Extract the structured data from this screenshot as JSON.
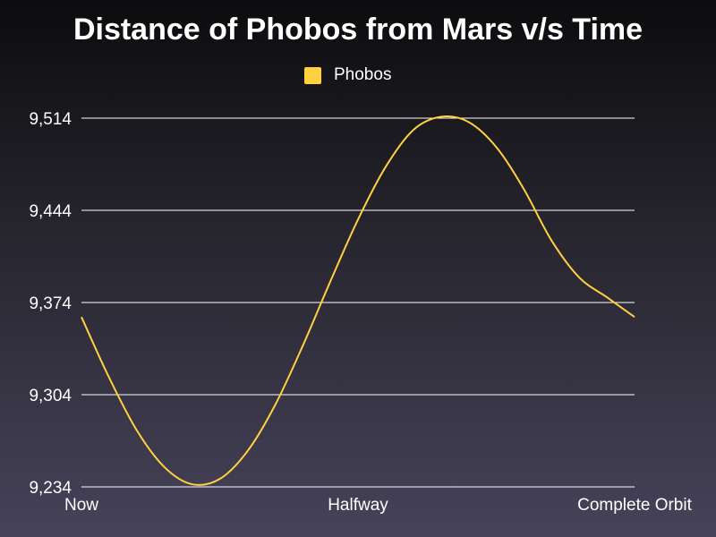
{
  "chart_data": {
    "type": "line",
    "title": "Distance of Phobos from Mars v/s Time",
    "xlabel": "",
    "ylabel": "",
    "x_tick_labels": [
      "Now",
      "Halfway",
      "Complete Orbit"
    ],
    "y_tick_labels": [
      "9,514",
      "9,444",
      "9,374",
      "9,304",
      "9,234"
    ],
    "ylim": [
      9234,
      9514
    ],
    "grid": true,
    "legend_position": "top-center",
    "series": [
      {
        "name": "Phobos",
        "color": "#ffd040",
        "x": [
          0,
          0.05,
          0.1,
          0.15,
          0.2,
          0.25,
          0.3,
          0.35,
          0.4,
          0.45,
          0.5,
          0.55,
          0.6,
          0.65,
          0.7,
          0.75,
          0.8,
          0.85,
          0.9,
          0.95,
          1.0
        ],
        "values": [
          9363,
          9317,
          9277,
          9249,
          9236,
          9240,
          9261,
          9296,
          9341,
          9390,
          9437,
          9477,
          9505,
          9515,
          9511,
          9492,
          9460,
          9421,
          9393,
          9378,
          9363
        ]
      }
    ]
  }
}
